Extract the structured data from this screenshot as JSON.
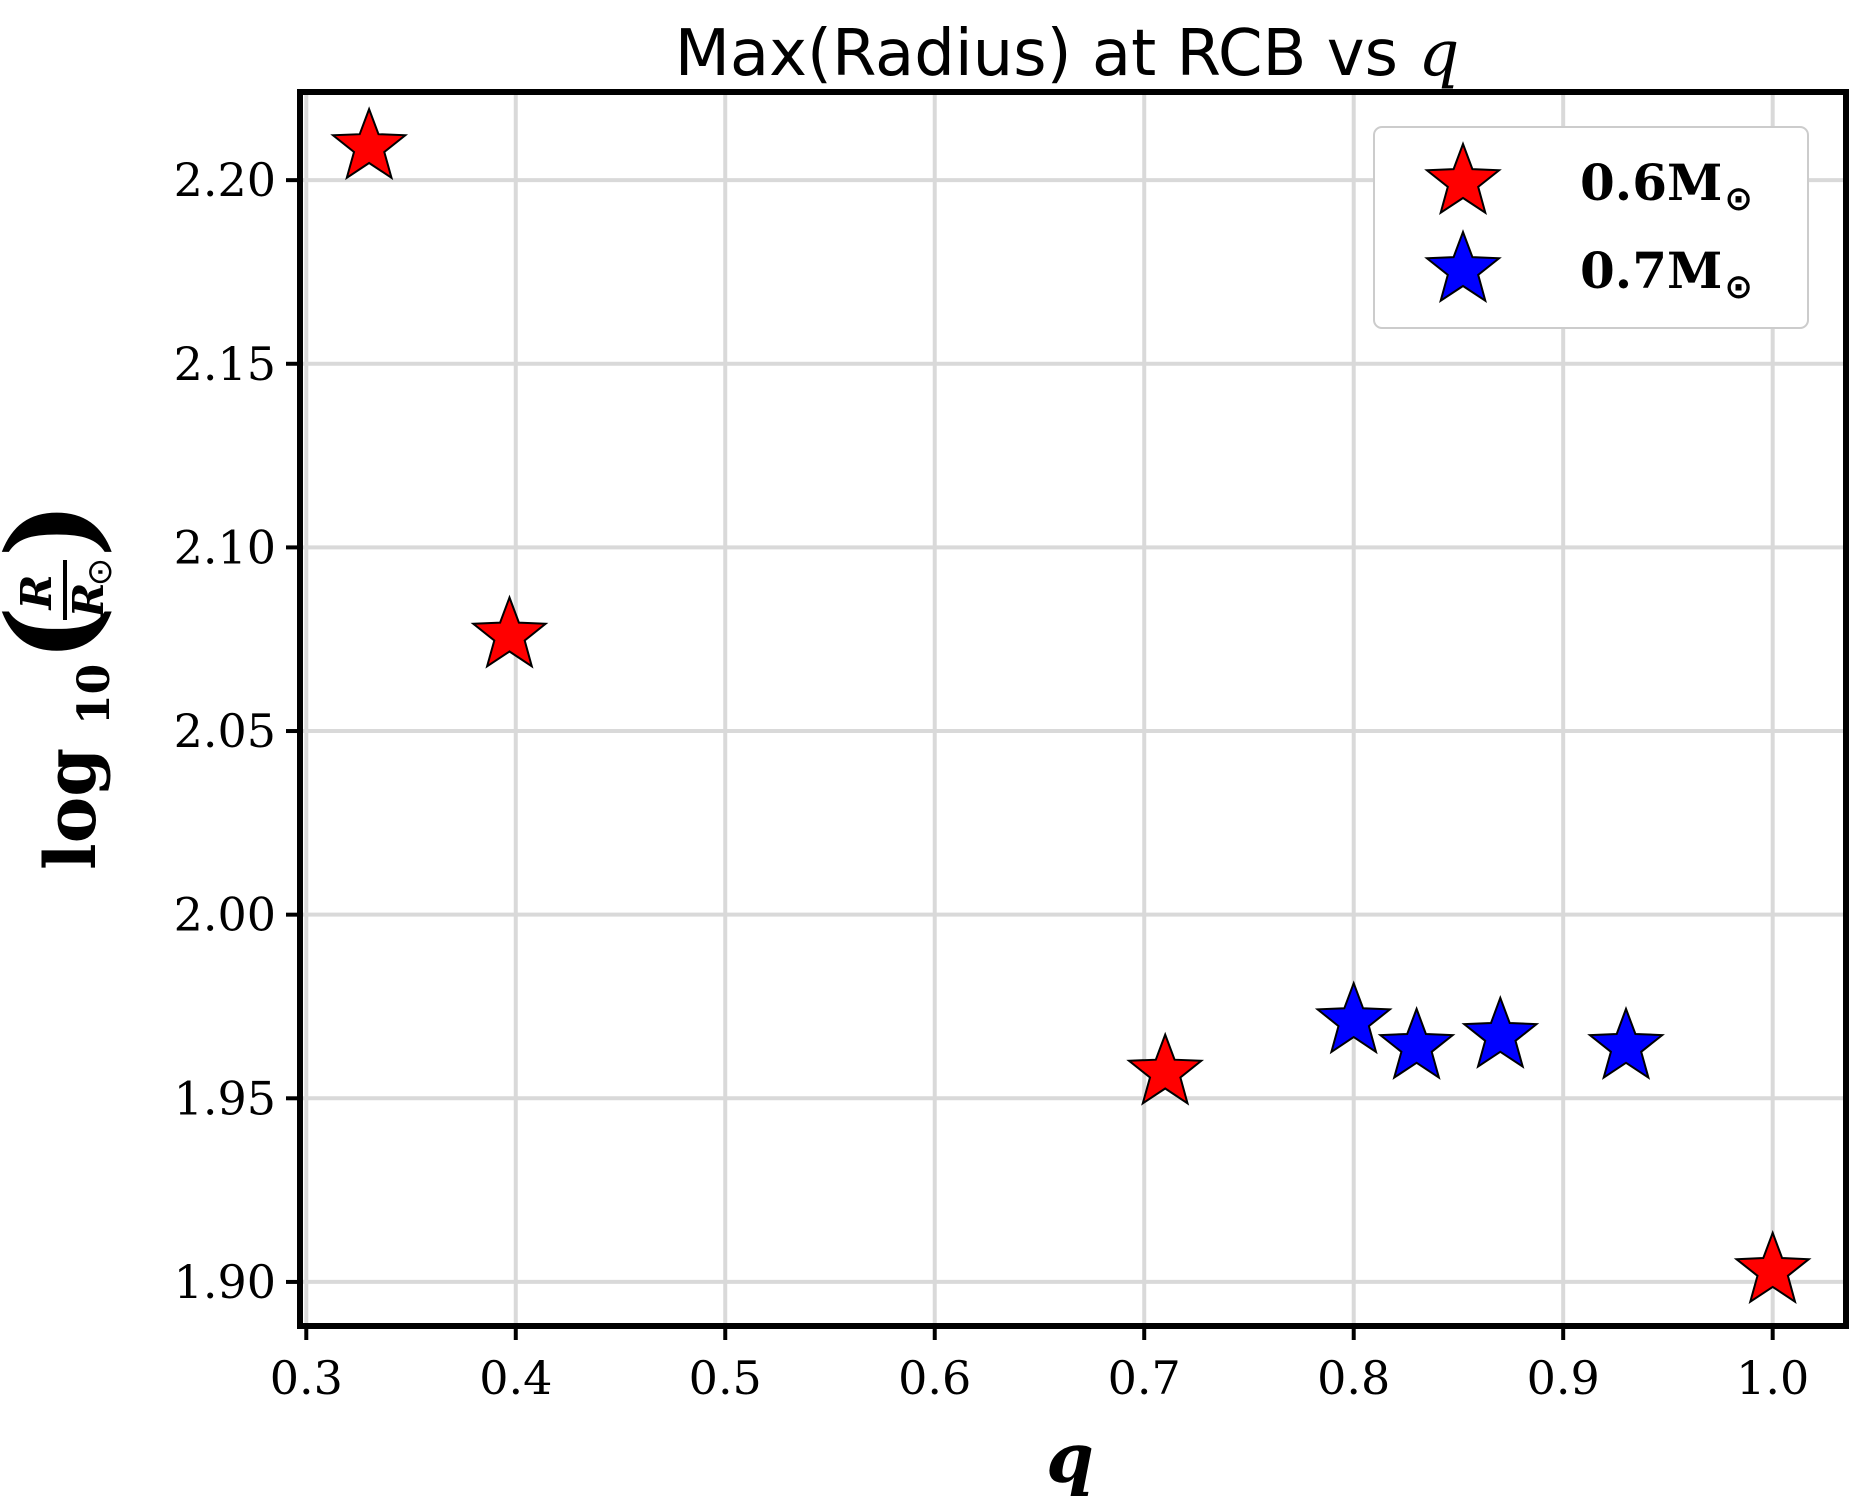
{
  "chart_data": {
    "type": "scatter",
    "title": "Max(Radius) at RCB vs ",
    "title_math": "q",
    "xlabel": "q",
    "ylabel": {
      "prefix": "log",
      "subscript": "10",
      "numerator": "R",
      "denominator": "R",
      "denominator_sub": "⊙"
    },
    "xlim": [
      0.297,
      1.035
    ],
    "ylim": [
      1.888,
      2.224
    ],
    "xticks": [
      0.3,
      0.4,
      0.5,
      0.6,
      0.7,
      0.8,
      0.9,
      1.0
    ],
    "xtick_labels": [
      "0.3",
      "0.4",
      "0.5",
      "0.6",
      "0.7",
      "0.8",
      "0.9",
      "1.0"
    ],
    "yticks": [
      1.9,
      1.95,
      2.0,
      2.05,
      2.1,
      2.15,
      2.2
    ],
    "ytick_labels": [
      "1.90",
      "1.95",
      "2.00",
      "2.05",
      "2.10",
      "2.15",
      "2.20"
    ],
    "grid": true,
    "legend_position": "top-right",
    "series": [
      {
        "name": "0.6M",
        "name_sub": "⊙",
        "color": "#ff0000",
        "marker": "star",
        "x": [
          0.33,
          0.397,
          0.71,
          1.0
        ],
        "y": [
          2.209,
          2.076,
          1.957,
          1.903
        ]
      },
      {
        "name": "0.7M",
        "name_sub": "⊙",
        "color": "#0000ff",
        "marker": "star",
        "x": [
          0.8,
          0.83,
          0.87,
          0.93
        ],
        "y": [
          1.971,
          1.964,
          1.967,
          1.964
        ]
      }
    ]
  }
}
